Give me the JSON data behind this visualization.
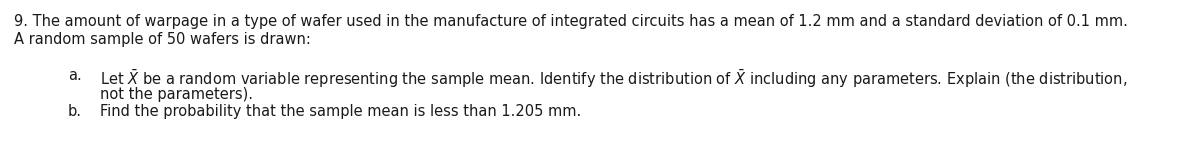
{
  "background_color": "#ffffff",
  "main_text": "9. The amount of warpage in a type of wafer used in the manufacture of integrated circuits has a mean of 1.2 mm and a standard deviation of 0.1 mm.",
  "main_text2": "A random sample of 50 wafers is drawn:",
  "item_a_label": "a.",
  "item_a_line1_pre": "Let ",
  "item_a_xbar": "$\\bar{X}$",
  "item_a_line1_mid": " be a random variable representing the sample mean. Identify the distribution of ",
  "item_a_xbar2": "$\\bar{X}$",
  "item_a_line1_post": " including any parameters. Explain (the distribution,",
  "item_a_line2": "not the parameters).",
  "item_b_label": "b.",
  "item_b_line1": "Find the probability that the sample mean is less than 1.205 mm.",
  "font_size": 10.5,
  "text_color": "#1a1a1a"
}
